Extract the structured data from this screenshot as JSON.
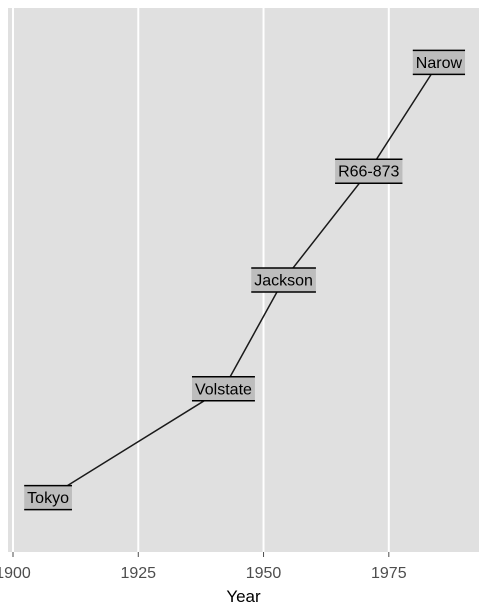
{
  "chart_data": {
    "type": "line",
    "xlabel": "Year",
    "ylabel": "",
    "xlim": [
      1899,
      1993
    ],
    "ylim": [
      0.5,
      5.5
    ],
    "x_ticks": [
      1900,
      1925,
      1950,
      1975
    ],
    "x_tick_labels": [
      "1900",
      "1925",
      "1950",
      "1975"
    ],
    "grid": true,
    "series": [
      {
        "points": [
          {
            "x": 1907,
            "y": 1,
            "label": "Tokyo"
          },
          {
            "x": 1942,
            "y": 2,
            "label": "Volstate"
          },
          {
            "x": 1954,
            "y": 3,
            "label": "Jackson"
          },
          {
            "x": 1971,
            "y": 4,
            "label": "R66-873"
          },
          {
            "x": 1985,
            "y": 5,
            "label": "Narow"
          }
        ]
      }
    ],
    "colors": {
      "panel": "#e0e0e0",
      "grid": "#ffffff",
      "line": "#1a1a1a",
      "label_fill": "#bdbdbd",
      "label_border": "#000000"
    }
  }
}
